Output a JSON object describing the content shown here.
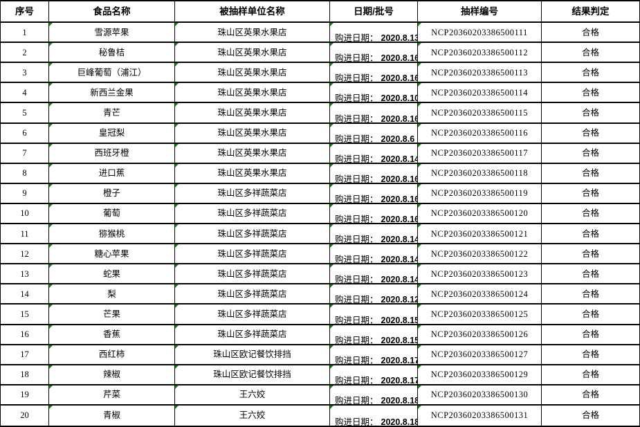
{
  "table": {
    "columns": [
      {
        "key": "no",
        "label": "序号"
      },
      {
        "key": "food",
        "label": "食品名称"
      },
      {
        "key": "unit",
        "label": "被抽样单位名称"
      },
      {
        "key": "date",
        "label": "日期/批号"
      },
      {
        "key": "sn",
        "label": "抽样编号"
      },
      {
        "key": "result",
        "label": "结果判定"
      }
    ],
    "date_prefix": "购进日期：",
    "rows": [
      {
        "no": "1",
        "food": "雪源苹果",
        "unit": "珠山区英果水果店",
        "date": "2020.8.13",
        "sn": "NCP20360203386500111",
        "result": "合格"
      },
      {
        "no": "2",
        "food": "秘鲁桔",
        "unit": "珠山区英果水果店",
        "date": "2020.8.16",
        "sn": "NCP20360203386500112",
        "result": "合格"
      },
      {
        "no": "3",
        "food": "巨峰葡萄（浦江）",
        "unit": "珠山区英果水果店",
        "date": "2020.8.16",
        "sn": "NCP20360203386500113",
        "result": "合格"
      },
      {
        "no": "4",
        "food": "新西兰金果",
        "unit": "珠山区英果水果店",
        "date": "2020.8.10",
        "sn": "NCP20360203386500114",
        "result": "合格"
      },
      {
        "no": "5",
        "food": "青芒",
        "unit": "珠山区英果水果店",
        "date": "2020.8.16",
        "sn": "NCP20360203386500115",
        "result": "合格"
      },
      {
        "no": "6",
        "food": "皇冠梨",
        "unit": "珠山区英果水果店",
        "date": "2020.8.6",
        "sn": "NCP20360203386500116",
        "result": "合格"
      },
      {
        "no": "7",
        "food": "西班牙橙",
        "unit": "珠山区英果水果店",
        "date": "2020.8.14",
        "sn": "NCP20360203386500117",
        "result": "合格"
      },
      {
        "no": "8",
        "food": "进口蕉",
        "unit": "珠山区英果水果店",
        "date": "2020.8.16",
        "sn": "NCP20360203386500118",
        "result": "合格"
      },
      {
        "no": "9",
        "food": "橙子",
        "unit": "珠山区多祥蔬菜店",
        "date": "2020.8.16",
        "sn": "NCP20360203386500119",
        "result": "合格"
      },
      {
        "no": "10",
        "food": "葡萄",
        "unit": "珠山区多祥蔬菜店",
        "date": "2020.8.16",
        "sn": "NCP20360203386500120",
        "result": "合格"
      },
      {
        "no": "11",
        "food": "猕猴桃",
        "unit": "珠山区多祥蔬菜店",
        "date": "2020.8.14",
        "sn": "NCP20360203386500121",
        "result": "合格"
      },
      {
        "no": "12",
        "food": "糖心苹果",
        "unit": "珠山区多祥蔬菜店",
        "date": "2020.8.14",
        "sn": "NCP20360203386500122",
        "result": "合格"
      },
      {
        "no": "13",
        "food": "蛇果",
        "unit": "珠山区多祥蔬菜店",
        "date": "2020.8.14",
        "sn": "NCP20360203386500123",
        "result": "合格"
      },
      {
        "no": "14",
        "food": "梨",
        "unit": "珠山区多祥蔬菜店",
        "date": "2020.8.12",
        "sn": "NCP20360203386500124",
        "result": "合格"
      },
      {
        "no": "15",
        "food": "芒果",
        "unit": "珠山区多祥蔬菜店",
        "date": "2020.8.15",
        "sn": "NCP20360203386500125",
        "result": "合格"
      },
      {
        "no": "16",
        "food": "香蕉",
        "unit": "珠山区多祥蔬菜店",
        "date": "2020.8.15",
        "sn": "NCP20360203386500126",
        "result": "合格"
      },
      {
        "no": "17",
        "food": "西红柿",
        "unit": "珠山区欧记餐饮排挡",
        "date": "2020.8.17",
        "sn": "NCP20360203386500127",
        "result": "合格"
      },
      {
        "no": "18",
        "food": "辣椒",
        "unit": "珠山区欧记餐饮排挡",
        "date": "2020.8.17",
        "sn": "NCP20360203386500129",
        "result": "合格"
      },
      {
        "no": "19",
        "food": "芹菜",
        "unit": "王六姣",
        "date": "2020.8.18",
        "sn": "NCP20360203386500130",
        "result": "合格"
      },
      {
        "no": "20",
        "food": "青椒",
        "unit": "王六姣",
        "date": "2020.8.18",
        "sn": "NCP20360203386500131",
        "result": "合格"
      }
    ]
  },
  "colors": {
    "triangle_green": "#128112",
    "border_black": "#000000",
    "background": "#ffffff"
  }
}
